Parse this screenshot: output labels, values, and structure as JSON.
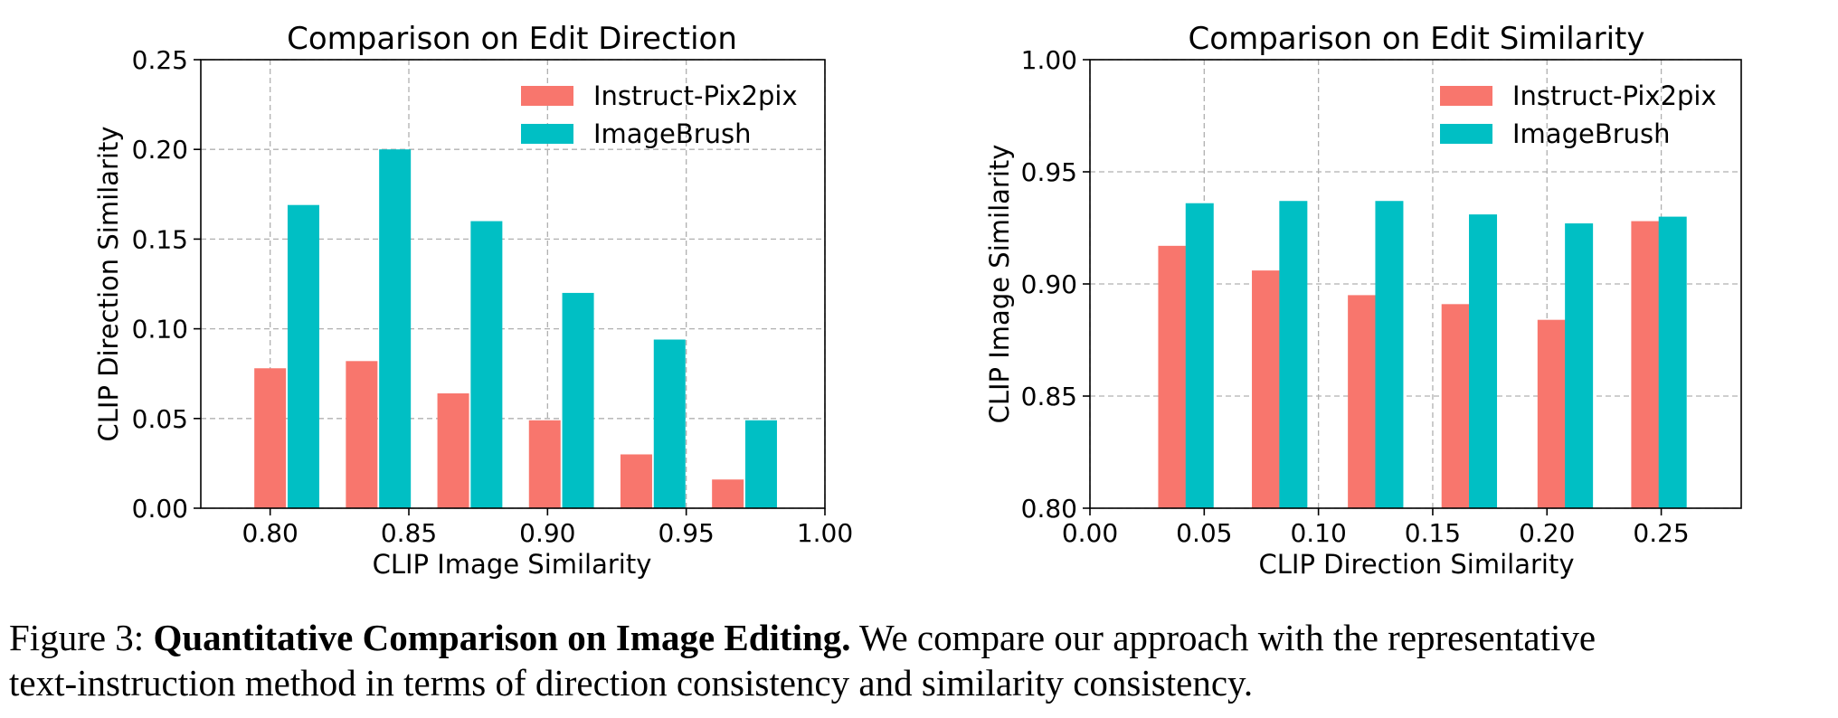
{
  "colors": {
    "instruct": "#F8766D",
    "imagebrush": "#00BFC4",
    "grid": "#b0b0b0"
  },
  "chart_data": [
    {
      "type": "bar",
      "title": "Comparison on Edit Direction",
      "xlabel": "CLIP Image Similarity",
      "ylabel": "CLIP Direction Similarity",
      "xlim": [
        0.775,
        1.0
      ],
      "ylim": [
        0,
        0.25
      ],
      "xticks": [
        "0.80",
        "0.85",
        "0.90",
        "0.95",
        "1.00"
      ],
      "yticks": [
        "0.00",
        "0.05",
        "0.10",
        "0.15",
        "0.20",
        "0.25"
      ],
      "grid": true,
      "legend_position": "top-right",
      "series": [
        {
          "name": "Instruct-Pix2pix",
          "color": "#F8766D",
          "points": [
            [
              0.8,
              0.078
            ],
            [
              0.833,
              0.082
            ],
            [
              0.866,
              0.064
            ],
            [
              0.899,
              0.049
            ],
            [
              0.932,
              0.03
            ],
            [
              0.965,
              0.016
            ]
          ]
        },
        {
          "name": "ImageBrush",
          "color": "#00BFC4",
          "points": [
            [
              0.812,
              0.169
            ],
            [
              0.845,
              0.2
            ],
            [
              0.878,
              0.16
            ],
            [
              0.911,
              0.12
            ],
            [
              0.944,
              0.094
            ],
            [
              0.977,
              0.049
            ]
          ]
        }
      ]
    },
    {
      "type": "bar",
      "title": "Comparison on Edit Similarity",
      "xlabel": "CLIP Direction Similarity",
      "ylabel": "CLIP Image Similarity",
      "xlim": [
        0.0,
        0.285
      ],
      "ylim": [
        0.8,
        1.0
      ],
      "xticks": [
        "0.00",
        "0.05",
        "0.10",
        "0.15",
        "0.20",
        "0.25"
      ],
      "yticks": [
        "0.80",
        "0.85",
        "0.90",
        "0.95",
        "1.00"
      ],
      "grid": true,
      "legend_position": "top-right",
      "series": [
        {
          "name": "Instruct-Pix2pix",
          "color": "#F8766D",
          "points": [
            [
              0.036,
              0.917
            ],
            [
              0.077,
              0.906
            ],
            [
              0.119,
              0.895
            ],
            [
              0.16,
              0.891
            ],
            [
              0.202,
              0.884
            ],
            [
              0.243,
              0.928
            ]
          ]
        },
        {
          "name": "ImageBrush",
          "color": "#00BFC4",
          "points": [
            [
              0.048,
              0.936
            ],
            [
              0.089,
              0.937
            ],
            [
              0.131,
              0.937
            ],
            [
              0.172,
              0.931
            ],
            [
              0.214,
              0.927
            ],
            [
              0.255,
              0.93
            ]
          ]
        }
      ]
    }
  ],
  "caption": {
    "prefix": "Figure 3: ",
    "bold": "Quantitative Comparison on Image Editing.",
    "line1_rest": " We compare our approach with the representative",
    "line2": "text-instruction method in terms of direction consistency and similarity consistency."
  }
}
